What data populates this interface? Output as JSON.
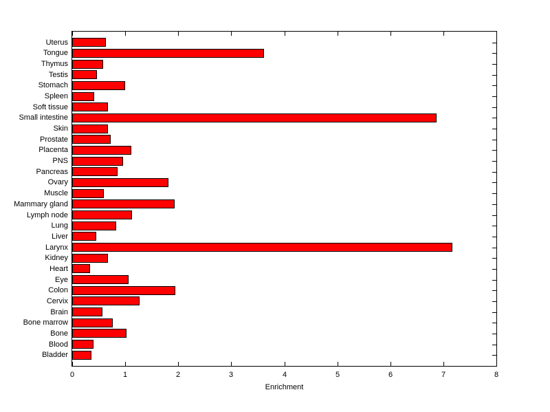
{
  "chart_data": {
    "type": "bar",
    "orientation": "horizontal",
    "title": "",
    "xlabel": "Enrichment",
    "ylabel": "",
    "xlim": [
      0,
      8
    ],
    "xticks": [
      0,
      1,
      2,
      3,
      4,
      5,
      6,
      7,
      8
    ],
    "grid": false,
    "legend": null,
    "bar_color": "#ff0000",
    "bar_edge_color": "#000000",
    "axis_color": "#000000",
    "background_color": "#ffffff",
    "categories": [
      "Uterus",
      "Tongue",
      "Thymus",
      "Testis",
      "Stomach",
      "Spleen",
      "Soft tissue",
      "Small intestine",
      "Skin",
      "Prostate",
      "Placenta",
      "PNS",
      "Pancreas",
      "Ovary",
      "Muscle",
      "Mammary gland",
      "Lymph node",
      "Lung",
      "Liver",
      "Larynx",
      "Kidney",
      "Heart",
      "Eye",
      "Colon",
      "Cervix",
      "Brain",
      "Bone marrow",
      "Bone",
      "Blood",
      "Bladder"
    ],
    "values": [
      0.63,
      3.62,
      0.58,
      0.47,
      1.0,
      0.42,
      0.67,
      6.87,
      0.68,
      0.72,
      1.11,
      0.96,
      0.85,
      1.81,
      0.6,
      1.93,
      1.13,
      0.83,
      0.46,
      7.17,
      0.67,
      0.34,
      1.06,
      1.94,
      1.27,
      0.57,
      0.77,
      1.03,
      0.4,
      0.36
    ]
  }
}
